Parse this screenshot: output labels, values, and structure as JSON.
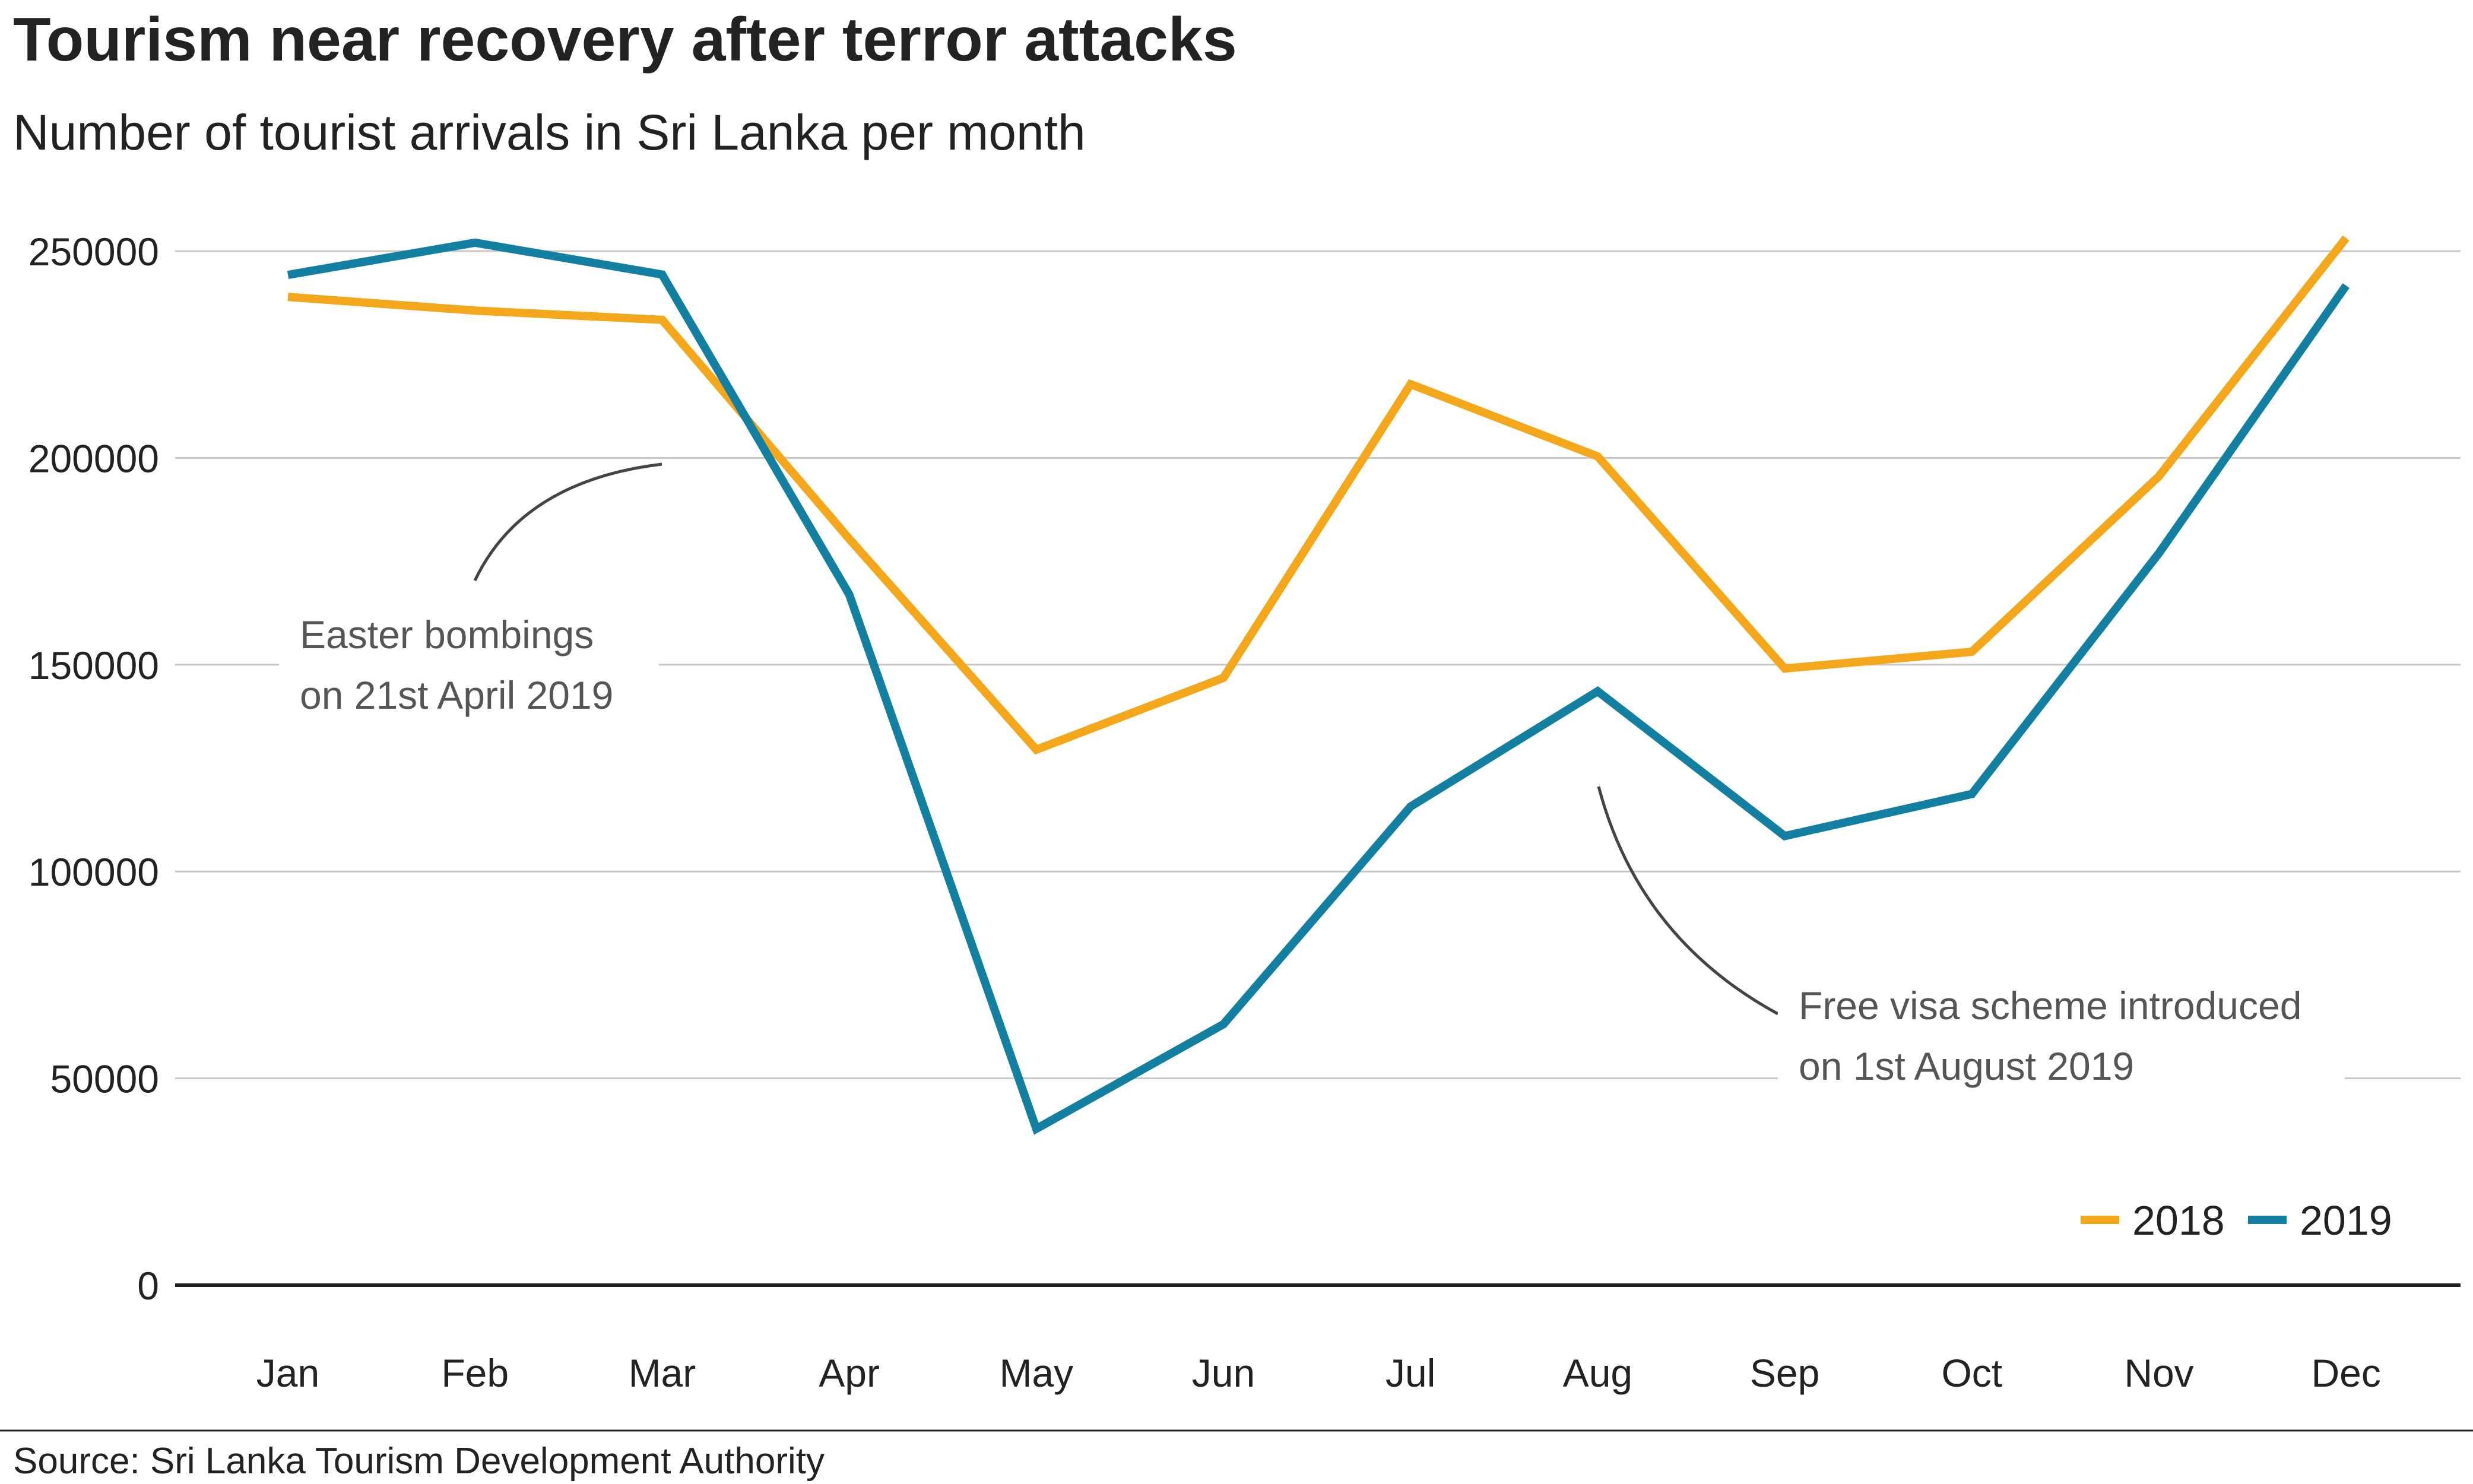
{
  "chart_data": {
    "type": "line",
    "title": "Tourism near recovery after terror attacks",
    "subtitle": "Number of tourist arrivals in Sri Lanka per month",
    "categories": [
      "Jan",
      "Feb",
      "Mar",
      "Apr",
      "May",
      "Jun",
      "Jul",
      "Aug",
      "Sep",
      "Oct",
      "Nov",
      "Dec"
    ],
    "series": [
      {
        "name": "2018",
        "color": "#f5a71c",
        "values": [
          238924,
          235618,
          233382,
          180429,
          129466,
          146828,
          217829,
          200359,
          149087,
          153123,
          195582,
          253169
        ]
      },
      {
        "name": "2019",
        "color": "#1380a1",
        "values": [
          244239,
          252033,
          244328,
          166975,
          37802,
          63072,
          115701,
          143587,
          108575,
          118743,
          176984,
          241663
        ]
      }
    ],
    "ylim": [
      0,
      250000
    ],
    "yticks": [
      0,
      50000,
      100000,
      150000,
      200000,
      250000
    ],
    "ytick_labels": [
      "0",
      "50000",
      "100000",
      "150000",
      "200000",
      "250000"
    ],
    "grid": true,
    "legend": "bottom-right",
    "annotations": [
      {
        "lines": [
          "Easter bombings",
          "on 21st April 2019"
        ]
      },
      {
        "lines": [
          "Free visa scheme introduced",
          "on 1st August 2019"
        ]
      }
    ],
    "source": "Source: Sri Lanka Tourism Development Authority"
  }
}
